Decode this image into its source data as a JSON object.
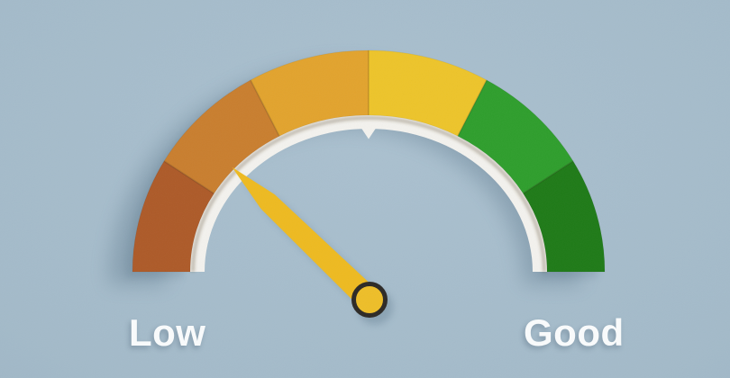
{
  "scene": {
    "description": "Flat paper-craft style semicircular gauge meter on a textured blue background, needle pointing into the low orange range"
  },
  "labels": {
    "low": "Low",
    "good": "Good"
  },
  "colors": {
    "background": "#a3bac9",
    "rim": "#f3f2ee",
    "shadow": "#3c5a70",
    "label_text": "#f8fafb"
  },
  "chart_data": {
    "type": "gauge",
    "shape": "semicircle",
    "title": "",
    "scale": {
      "start_angle_deg": 180,
      "end_angle_deg": 0,
      "min_label": "Low",
      "max_label": "Good"
    },
    "segments": [
      {
        "name": "dark-orange",
        "from_deg": 180,
        "to_deg": 150,
        "color": "#ad5a28"
      },
      {
        "name": "orange",
        "from_deg": 150,
        "to_deg": 120,
        "color": "#c97e2e"
      },
      {
        "name": "amber",
        "from_deg": 120,
        "to_deg": 90,
        "color": "#e2a32d"
      },
      {
        "name": "yellow",
        "from_deg": 90,
        "to_deg": 60,
        "color": "#edc42a"
      },
      {
        "name": "green",
        "from_deg": 60,
        "to_deg": 30,
        "color": "#2e9e2c"
      },
      {
        "name": "dark-green",
        "from_deg": 30,
        "to_deg": 0,
        "color": "#1e7a17"
      }
    ],
    "needle": {
      "angle_deg": 136,
      "fraction_of_scale": 0.24,
      "points_to_segment": "orange",
      "color": "#eeba20",
      "pivot_color": "#eebe28",
      "pivot_ring_color": "#2c2925"
    },
    "rim": {
      "color": "#f3f2ee",
      "notch_angle_deg": 90
    },
    "axis_labels": [
      {
        "text": "Low",
        "anchor": "left"
      },
      {
        "text": "Good",
        "anchor": "right"
      }
    ]
  }
}
